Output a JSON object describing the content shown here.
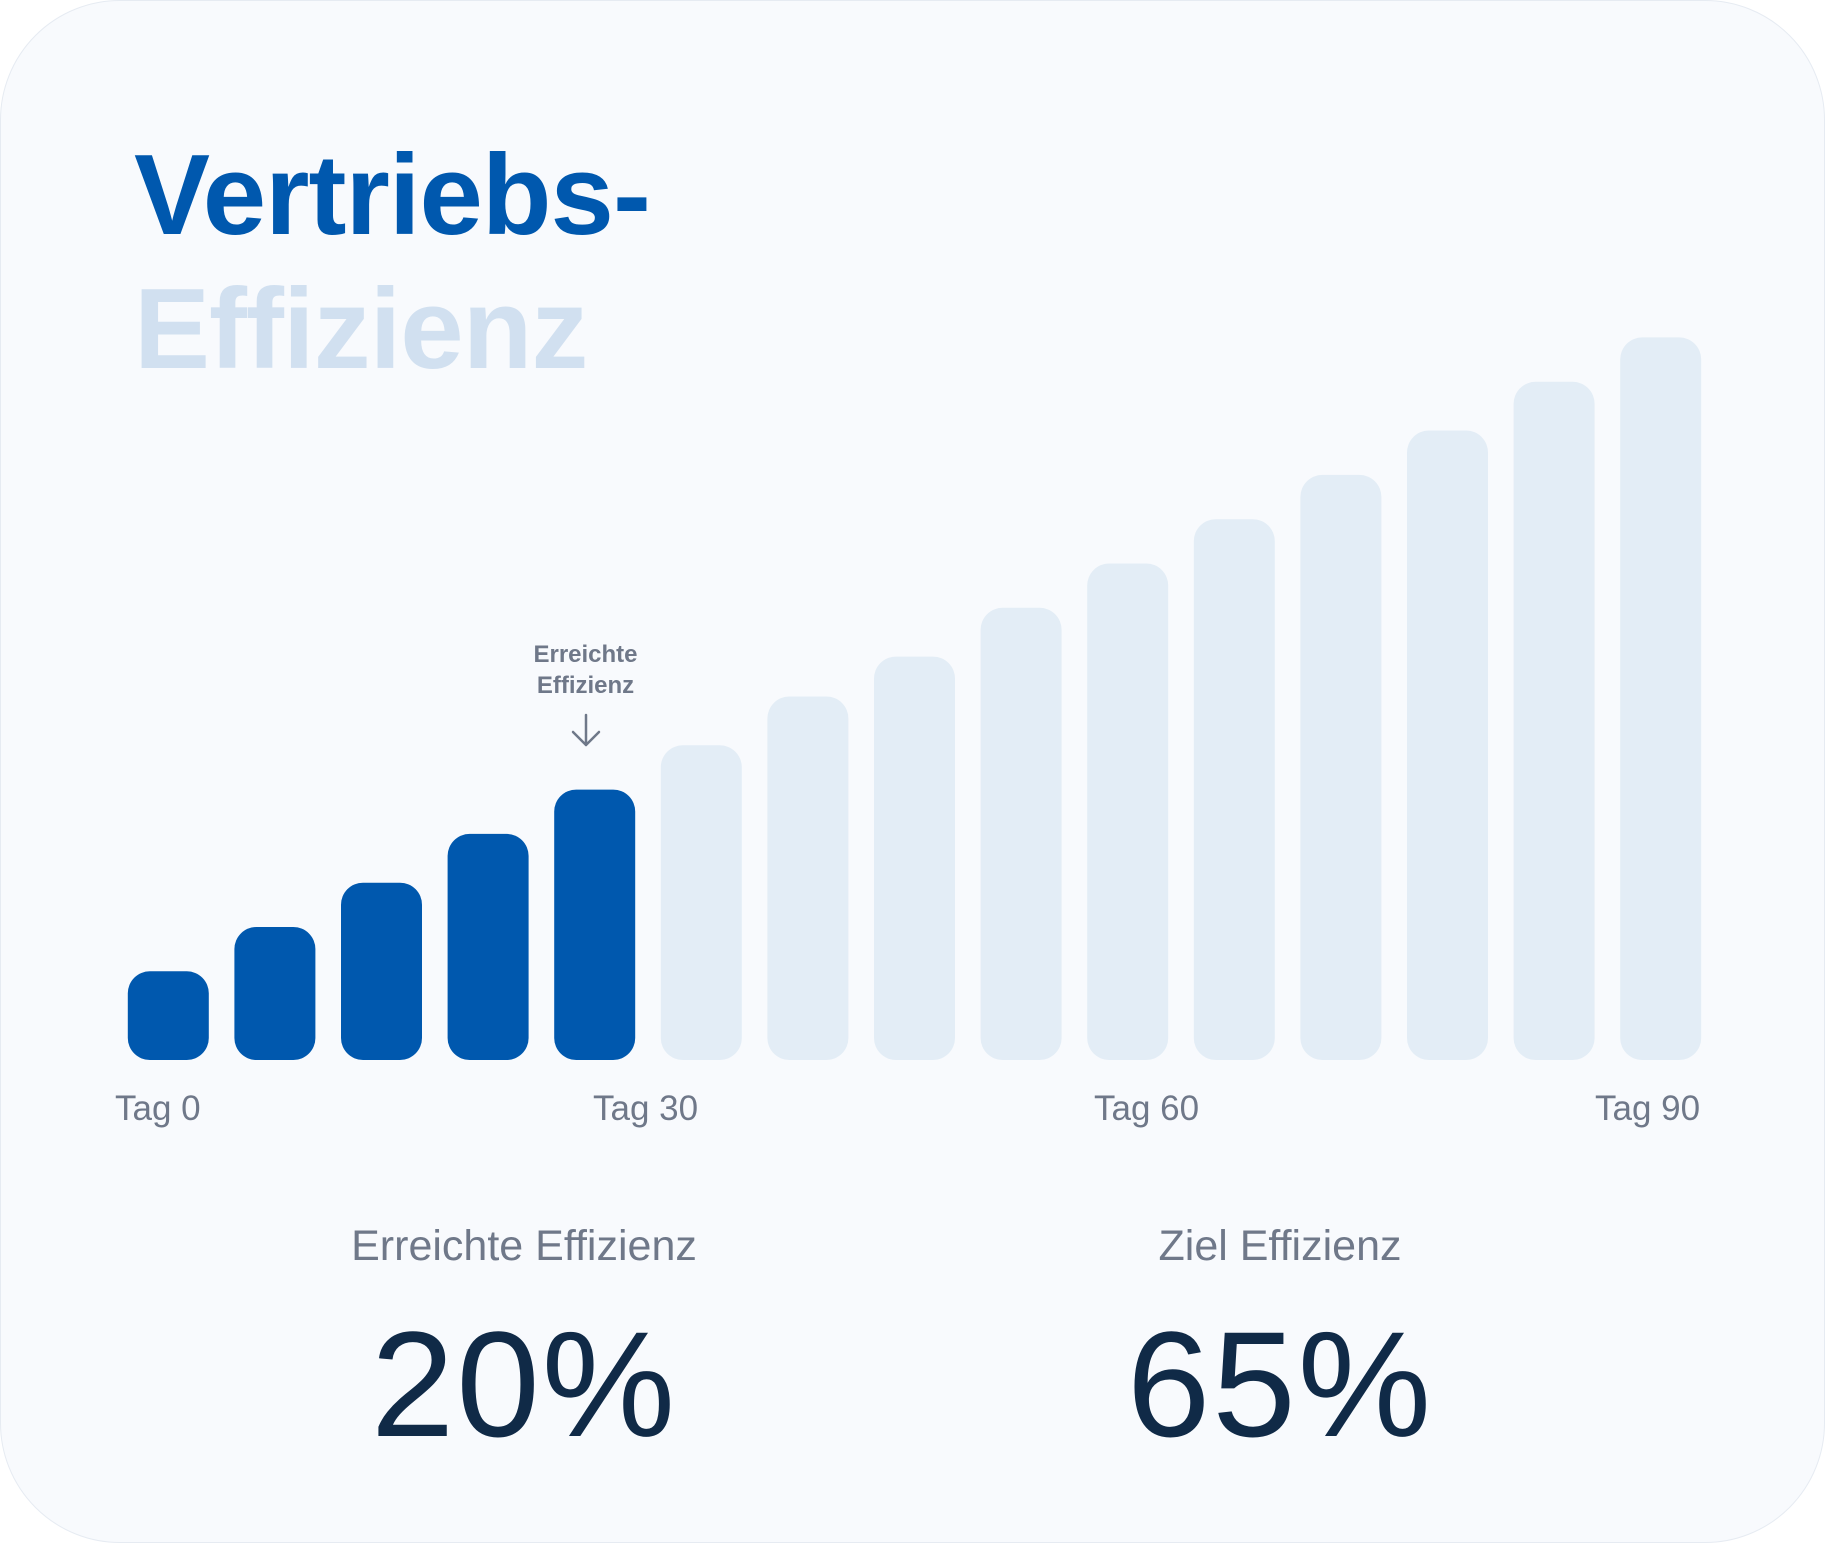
{
  "title": {
    "line1": "Vertriebs-",
    "line2": "Effizienz"
  },
  "annotation": {
    "line1": "Erreichte",
    "line2": "Effizienz",
    "bar_index": 4
  },
  "stats": [
    {
      "label": "Erreichte Effizienz",
      "value": "20%"
    },
    {
      "label": "Ziel Effizienz",
      "value": "65%"
    }
  ],
  "colors": {
    "achieved": "#0058ae",
    "remaining": "#e3edf6",
    "title_primary": "#0058ae",
    "title_secondary": "#d1e0f0"
  },
  "chart_data": {
    "type": "bar",
    "x_ticks": [
      "Tag 0",
      "Tag 30",
      "Tag 60",
      "Tag 90"
    ],
    "values": [
      10,
      15,
      20,
      25.5,
      30.5,
      35.5,
      41,
      45.5,
      51,
      56,
      61,
      66,
      71,
      76.5,
      81.5
    ],
    "achieved_count": 5,
    "ylim": [
      0,
      82
    ]
  }
}
